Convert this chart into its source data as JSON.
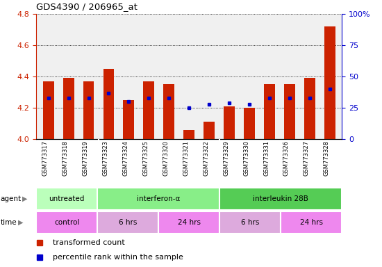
{
  "title": "GDS4390 / 206965_at",
  "samples": [
    "GSM773317",
    "GSM773318",
    "GSM773319",
    "GSM773323",
    "GSM773324",
    "GSM773325",
    "GSM773320",
    "GSM773321",
    "GSM773322",
    "GSM773329",
    "GSM773330",
    "GSM773331",
    "GSM773326",
    "GSM773327",
    "GSM773328"
  ],
  "red_values": [
    4.37,
    4.39,
    4.37,
    4.45,
    4.25,
    4.37,
    4.35,
    4.06,
    4.11,
    4.21,
    4.2,
    4.35,
    4.35,
    4.39,
    4.72
  ],
  "blue_percentiles": [
    33,
    33,
    33,
    37,
    30,
    33,
    33,
    25,
    28,
    29,
    28,
    33,
    33,
    33,
    40
  ],
  "ymin": 4.0,
  "ymax": 4.8,
  "y2min": 0,
  "y2max": 100,
  "yticks": [
    4.0,
    4.2,
    4.4,
    4.6,
    4.8
  ],
  "y2ticks": [
    0,
    25,
    50,
    75,
    100
  ],
  "y2ticklabels": [
    "0",
    "25",
    "50",
    "75",
    "100%"
  ],
  "bar_color": "#cc2200",
  "dot_color": "#0000cc",
  "plot_bg_color": "#f0f0f0",
  "sample_area_bg": "#d8d8d8",
  "agent_row": [
    {
      "label": "untreated",
      "start": 0,
      "end": 3,
      "color": "#bbffbb"
    },
    {
      "label": "interferon-α",
      "start": 3,
      "end": 9,
      "color": "#88ee88"
    },
    {
      "label": "interleukin 28B",
      "start": 9,
      "end": 15,
      "color": "#55cc55"
    }
  ],
  "time_row": [
    {
      "label": "control",
      "start": 0,
      "end": 3,
      "color": "#ee88ee"
    },
    {
      "label": "6 hrs",
      "start": 3,
      "end": 6,
      "color": "#ddaadd"
    },
    {
      "label": "24 hrs",
      "start": 6,
      "end": 9,
      "color": "#ee88ee"
    },
    {
      "label": "6 hrs",
      "start": 9,
      "end": 12,
      "color": "#ddaadd"
    },
    {
      "label": "24 hrs",
      "start": 12,
      "end": 15,
      "color": "#ee88ee"
    }
  ],
  "legend_red": "transformed count",
  "legend_blue": "percentile rank within the sample",
  "bar_width": 0.55
}
